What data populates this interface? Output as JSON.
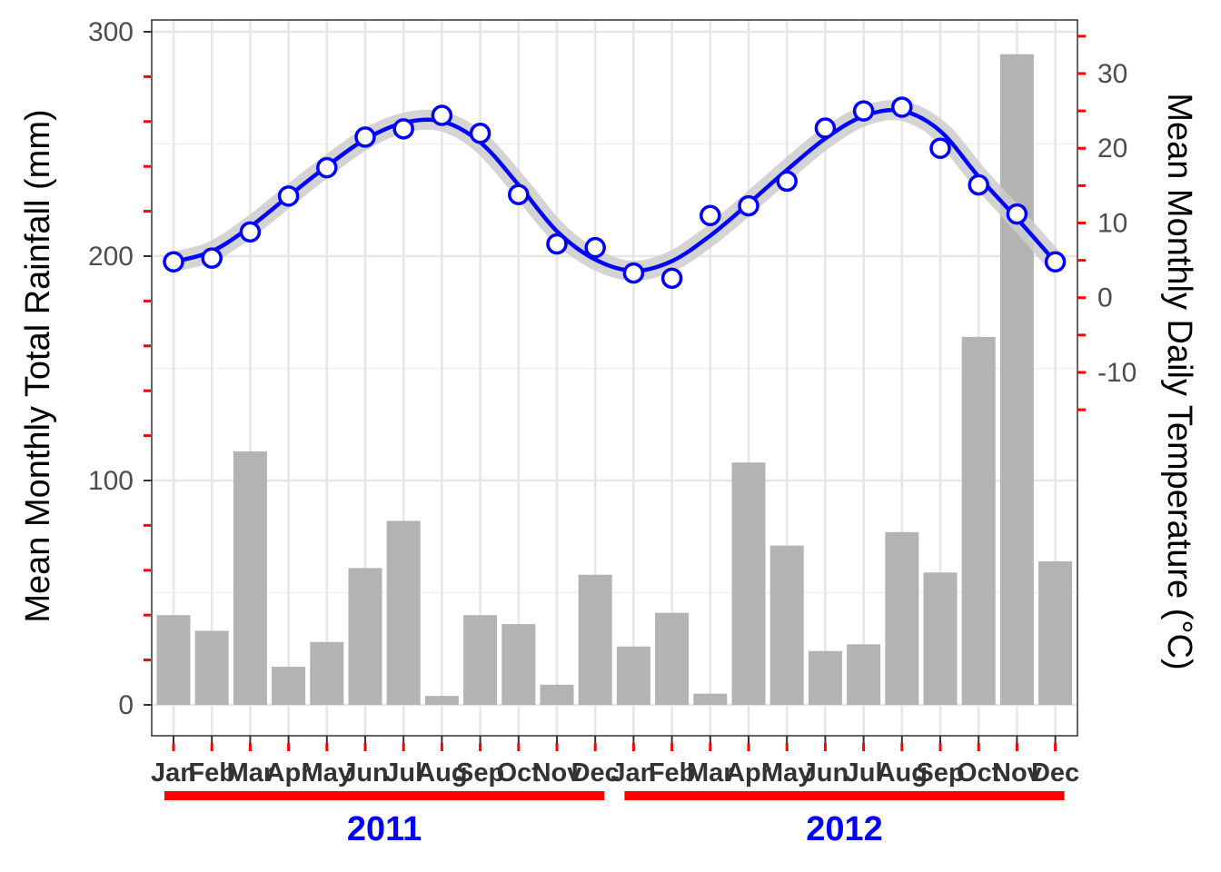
{
  "chart_data": {
    "type": "bar+line",
    "title": "",
    "ylabel_left": "Mean Monthly Total Rainfall (mm)",
    "ylabel_right": "Mean Monthly Daily Temperature (°C)",
    "xlabel": "",
    "ylim_left": [
      -14,
      305
    ],
    "yticks_left": [
      0,
      100,
      200,
      300
    ],
    "yticks_right": [
      -10,
      0,
      10,
      20,
      30
    ],
    "right_axis_mapping": {
      "temp_at_0": -54.5,
      "mm_per_degree": 3.33
    },
    "months": [
      "Jan",
      "Feb",
      "Mar",
      "Apr",
      "May",
      "Jun",
      "Jul",
      "Aug",
      "Sep",
      "Oct",
      "Nov",
      "Dec",
      "Jan",
      "Feb",
      "Mar",
      "Apr",
      "May",
      "Jun",
      "Jul",
      "Aug",
      "Sep",
      "Oct",
      "Nov",
      "Dec"
    ],
    "years": [
      {
        "label": "2011",
        "start": 0,
        "end": 11
      },
      {
        "label": "2012",
        "start": 12,
        "end": 23
      }
    ],
    "series": [
      {
        "name": "rainfall",
        "kind": "bar",
        "values": [
          40,
          33,
          113,
          17,
          28,
          61,
          82,
          4,
          40,
          36,
          9,
          58,
          26,
          41,
          5,
          108,
          71,
          24,
          27,
          77,
          59,
          164,
          290,
          64
        ]
      },
      {
        "name": "temperature",
        "kind": "points",
        "values": [
          4.8,
          5.3,
          8.8,
          13.6,
          17.4,
          21.5,
          22.6,
          24.4,
          22.0,
          13.8,
          7.2,
          6.7,
          3.3,
          2.6,
          11.0,
          12.3,
          15.6,
          22.7,
          25.0,
          25.5,
          20.0,
          15.1,
          11.2,
          4.8
        ]
      },
      {
        "name": "temperature-smooth",
        "kind": "line",
        "values": [
          4.8,
          6.2,
          9.5,
          13.6,
          17.6,
          21.2,
          23.4,
          23.6,
          20.8,
          15.1,
          8.9,
          5.1,
          3.6,
          4.9,
          8.3,
          12.6,
          17.1,
          21.3,
          24.3,
          25.0,
          22.3,
          16.2,
          10.6,
          4.8
        ]
      }
    ],
    "colors": {
      "bars": "#b3b3b3",
      "line": "#0000ff",
      "band": "#cccccc",
      "accent": "#ff0000",
      "year_label": "#0000ff"
    }
  }
}
